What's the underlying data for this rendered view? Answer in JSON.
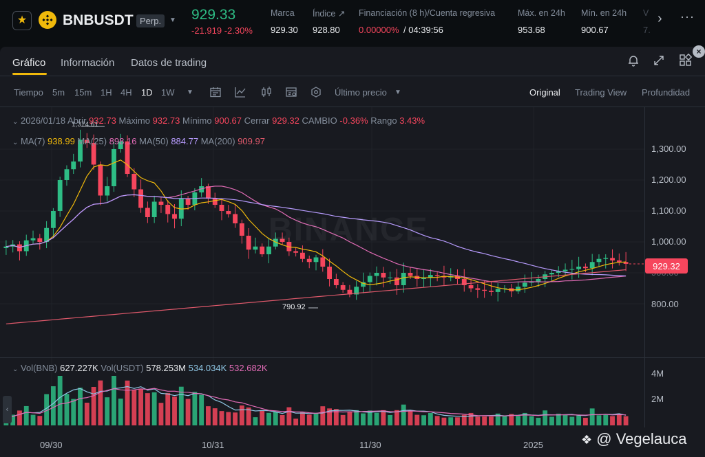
{
  "header": {
    "symbol": "BNBUSDT",
    "contract_type": "Perp.",
    "last_price": "929.33",
    "change": "-21.919 -2.30%",
    "stats": [
      {
        "label": "Marca",
        "value": "929.30"
      },
      {
        "label": "Índice ↗",
        "value": "928.80"
      },
      {
        "label": "Financiación (8 h)/Cuenta regresiva",
        "value_rate": "0.00000%",
        "value_countdown": "/ 04:39:56"
      },
      {
        "label": "Máx. en 24h",
        "value": "953.68"
      },
      {
        "label": "Mín. en 24h",
        "value": "900.67"
      },
      {
        "label": "V",
        "value": "7."
      }
    ]
  },
  "tabs": [
    "Gráfico",
    "Información",
    "Datos de trading"
  ],
  "toolbar": {
    "time_label": "Tiempo",
    "intervals": [
      "5m",
      "15m",
      "1H",
      "4H",
      "1D",
      "1W"
    ],
    "selected_interval": "1D",
    "price_type": "Último precio",
    "views": [
      "Original",
      "Trading View",
      "Profundidad"
    ],
    "selected_view": "Original"
  },
  "ohlc": {
    "date": "2026/01/18",
    "open_label": "Abrir",
    "open": "932.73",
    "high_label": "Máximo",
    "high": "932.73",
    "low_label": "Mínimo",
    "low": "900.67",
    "close_label": "Cerrar",
    "close": "929.32",
    "change_label": "CAMBIO",
    "change": "-0.36%",
    "range_label": "Rango",
    "range": "3.43%"
  },
  "ma": {
    "ma7_label": "MA(7)",
    "ma7": "938.99",
    "ma25_label": "MA(25)",
    "ma25": "898.16",
    "ma50_label": "MA(50)",
    "ma50": "884.77",
    "ma200_label": "MA(200)",
    "ma200": "909.97"
  },
  "volume": {
    "vol_bnb_label": "Vol(BNB)",
    "vol_bnb": "627.227K",
    "vol_usdt_label": "Vol(USDT)",
    "vol_usdt": "578.253M",
    "ma1": "534.034K",
    "ma2": "532.682K"
  },
  "chart_annotations": {
    "high_mark": "1,374.61",
    "low_mark": "790.92"
  },
  "current_price_tag": "929.32",
  "watermark": "BINANCE",
  "credit": "@ Vegelauca",
  "chart_data": {
    "type": "line",
    "title": "",
    "price_axis_ticks": [
      "1,300.00",
      "1,200.00",
      "1,100.00",
      "1,000.00",
      "900.00",
      "800.00"
    ],
    "volume_axis_ticks": [
      "4M",
      "2M"
    ],
    "x_ticks": [
      "09/30",
      "10/31",
      "11/30",
      "2025"
    ],
    "ylim": [
      740,
      1420
    ],
    "colors": {
      "up": "#2ebd85",
      "down": "#f6465d",
      "ma7": "#f0b90b",
      "ma25": "#e06bb5",
      "ma50": "#b89cff",
      "ma200": "#e0596b"
    },
    "close_series": [
      985,
      992,
      970,
      1005,
      1012,
      1000,
      1045,
      1100,
      1200,
      1235,
      1260,
      1330,
      1320,
      1250,
      1150,
      1180,
      1300,
      1325,
      1220,
      1170,
      1110,
      1080,
      1130,
      1120,
      1090,
      1075,
      1140,
      1120,
      1160,
      1180,
      1140,
      1120,
      1100,
      1090,
      1060,
      1020,
      975,
      985,
      960,
      985,
      1010,
      1000,
      970,
      965,
      945,
      935,
      950,
      920,
      880,
      860,
      845,
      830,
      855,
      870,
      890,
      900,
      885,
      885,
      860,
      900,
      890,
      880,
      885,
      893,
      890,
      885,
      890,
      880,
      860,
      850,
      845,
      842,
      838,
      848,
      850,
      840,
      855,
      868,
      872,
      880,
      895,
      900,
      905,
      910,
      912,
      920,
      915,
      935,
      945,
      948,
      940,
      935,
      929
    ]
  }
}
